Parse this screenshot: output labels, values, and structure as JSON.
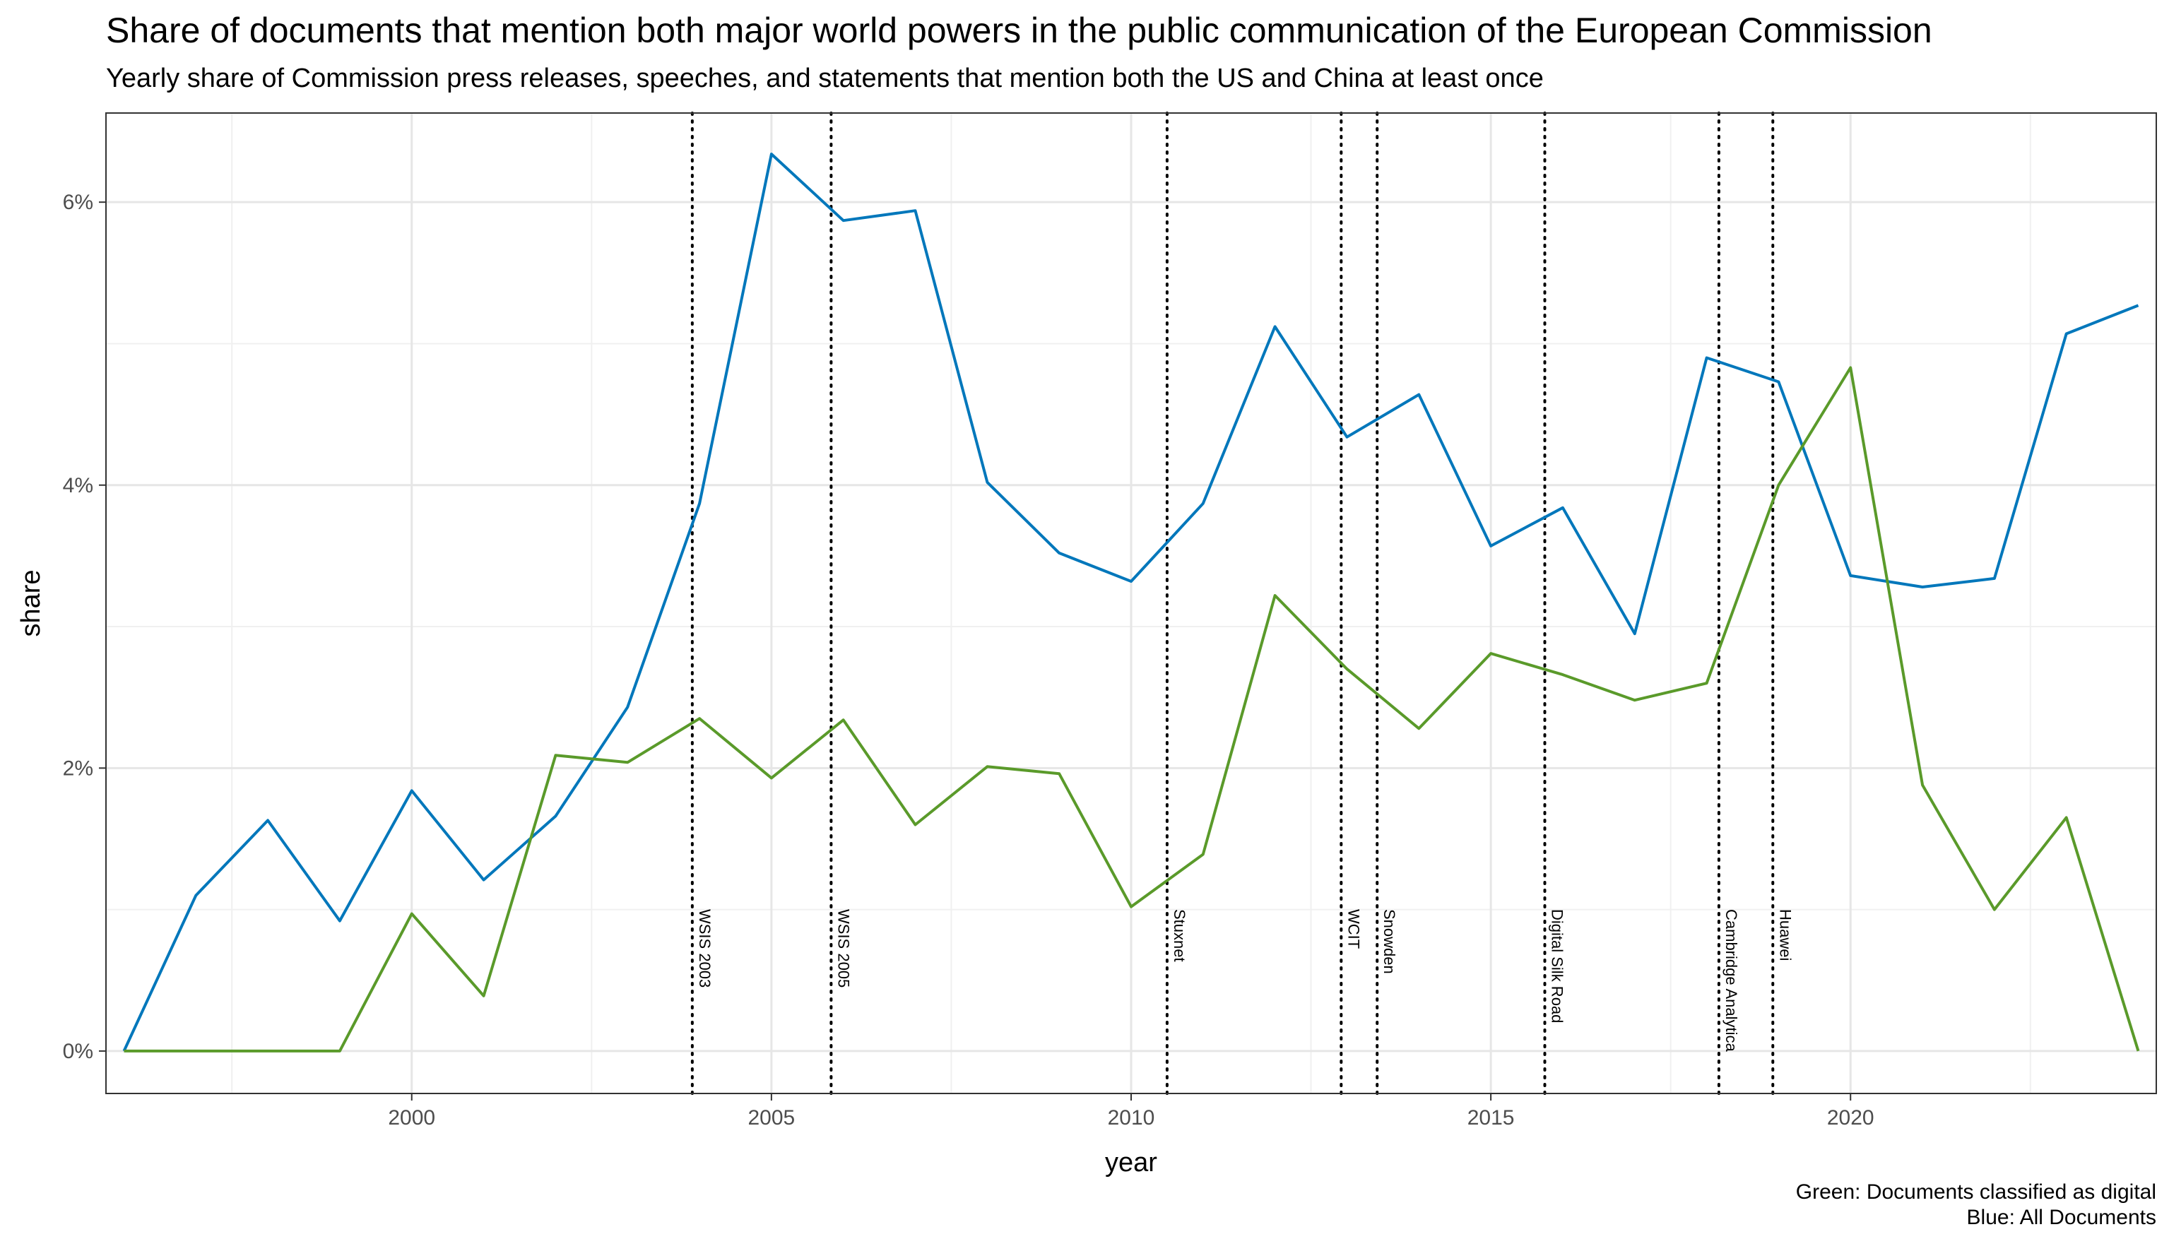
{
  "chart_data": {
    "type": "line",
    "title": "Share of documents that mention both major world powers in the public communication of the European Commission",
    "subtitle": "Yearly share of Commission press releases, speeches, and statements that mention both the US and China at least once",
    "xlabel": "year",
    "ylabel": "share",
    "xlim": [
      1995.75,
      2024.25
    ],
    "ylim": [
      -0.003,
      0.0663
    ],
    "x_ticks": [
      2000,
      2005,
      2010,
      2015,
      2020
    ],
    "x_tick_labels": [
      "2000",
      "2005",
      "2010",
      "2015",
      "2020"
    ],
    "y_ticks": [
      0,
      0.02,
      0.04,
      0.06
    ],
    "y_tick_labels": [
      "0%",
      "2%",
      "4%",
      "6%"
    ],
    "grid": true,
    "x": [
      1996,
      1997,
      1998,
      1999,
      2000,
      2001,
      2002,
      2003,
      2004,
      2005,
      2006,
      2007,
      2008,
      2009,
      2010,
      2011,
      2012,
      2013,
      2014,
      2015,
      2016,
      2017,
      2018,
      2019,
      2020,
      2021,
      2022,
      2023,
      2024
    ],
    "series": [
      {
        "color": "#0077BB",
        "values": [
          0.0,
          0.011,
          0.0163,
          0.0092,
          0.0184,
          0.0121,
          0.0166,
          0.0243,
          0.0387,
          0.0634,
          0.0587,
          0.0594,
          0.0402,
          0.0352,
          0.0332,
          0.0387,
          0.0512,
          0.0434,
          0.0464,
          0.0357,
          0.0384,
          0.0295,
          0.049,
          0.0473,
          0.0336,
          0.0328,
          0.0334,
          0.0507,
          0.0527
        ]
      },
      {
        "color": "#5A9A2A",
        "values": [
          0.0,
          0.0,
          0.0,
          0.0,
          0.0097,
          0.0039,
          0.0209,
          0.0204,
          0.0235,
          0.0193,
          0.0234,
          0.016,
          0.0201,
          0.0196,
          0.0102,
          0.0139,
          0.0322,
          0.027,
          0.0228,
          0.0281,
          0.0266,
          0.0248,
          0.026,
          0.04,
          0.0483,
          0.0188,
          0.01,
          0.0165,
          0.0
        ]
      }
    ],
    "events": [
      {
        "x": 2003.9,
        "label": "WSIS 2003"
      },
      {
        "x": 2005.83,
        "label": "WSIS 2005"
      },
      {
        "x": 2010.5,
        "label": "Stuxnet"
      },
      {
        "x": 2012.92,
        "label": "WCIT"
      },
      {
        "x": 2013.42,
        "label": "Snowden"
      },
      {
        "x": 2015.75,
        "label": "Digital Silk Road"
      },
      {
        "x": 2018.17,
        "label": "Cambridge Analytica"
      },
      {
        "x": 2018.92,
        "label": "Huawei"
      }
    ],
    "caption": [
      "Green: Documents classified as digital",
      "Blue: All Documents"
    ]
  }
}
